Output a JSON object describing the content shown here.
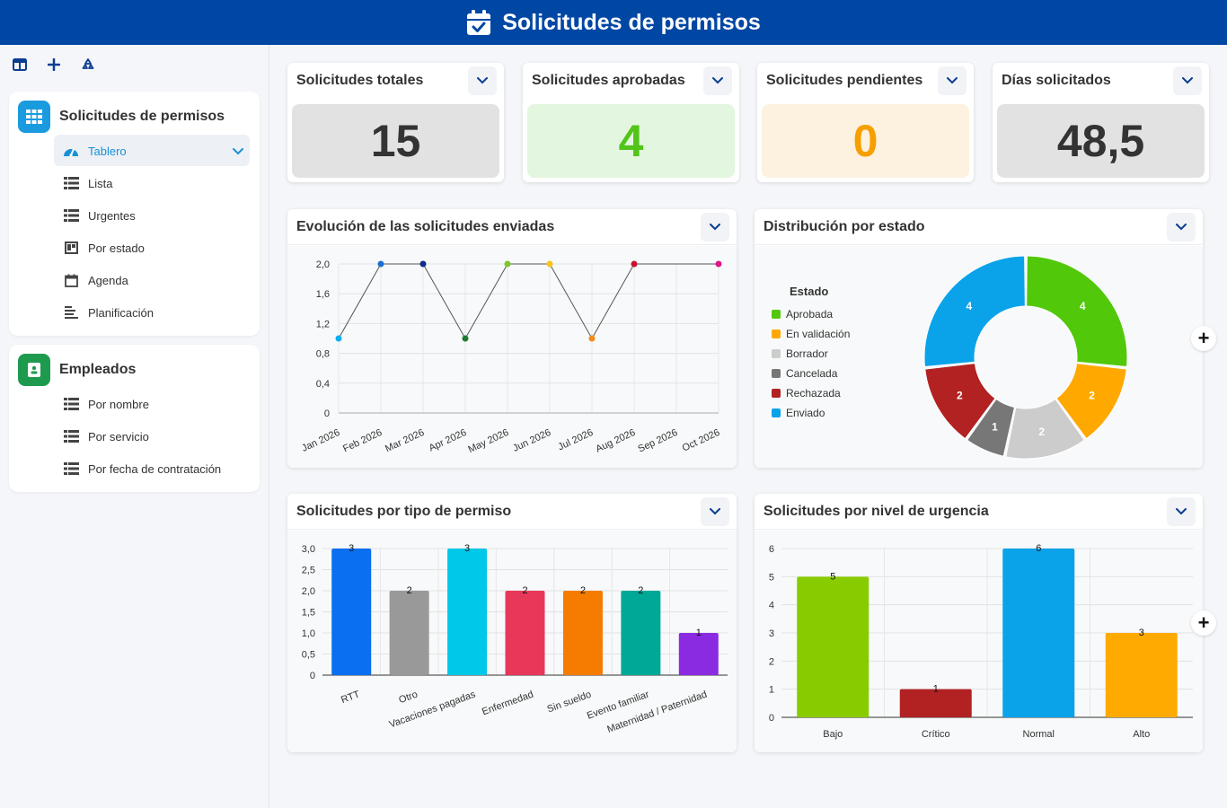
{
  "header": {
    "title": "Solicitudes de permisos"
  },
  "sidebar": {
    "groups": [
      {
        "title": "Solicitudes de permisos",
        "color": "#1a9be0",
        "items": [
          {
            "label": "Tablero",
            "icon": "dashboard-icon",
            "active": true
          },
          {
            "label": "Lista",
            "icon": "table-icon"
          },
          {
            "label": "Urgentes",
            "icon": "table-icon"
          },
          {
            "label": "Por estado",
            "icon": "kanban-icon"
          },
          {
            "label": "Agenda",
            "icon": "calendar-icon"
          },
          {
            "label": "Planificación",
            "icon": "gantt-icon"
          }
        ]
      },
      {
        "title": "Empleados",
        "color": "#1e9a4f",
        "items": [
          {
            "label": "Por nombre",
            "icon": "table-icon"
          },
          {
            "label": "Por servicio",
            "icon": "table-icon"
          },
          {
            "label": "Por fecha de contratación",
            "icon": "table-icon"
          }
        ]
      }
    ]
  },
  "kpis": [
    {
      "title": "Solicitudes totales",
      "value": "15",
      "bg": "#e2e2e2",
      "color": "#333333"
    },
    {
      "title": "Solicitudes aprobadas",
      "value": "4",
      "bg": "#e3f6df",
      "color": "#52c41a"
    },
    {
      "title": "Solicitudes pendientes",
      "value": "0",
      "bg": "#fdf1df",
      "color": "#f5a000"
    },
    {
      "title": "Días solicitados",
      "value": "48,5",
      "bg": "#e2e2e2",
      "color": "#333333"
    }
  ],
  "charts": {
    "line": {
      "title": "Evolución de las solicitudes enviadas"
    },
    "donut": {
      "title": "Distribución por estado"
    },
    "bar_type": {
      "title": "Solicitudes por tipo de permiso"
    },
    "bar_urgency": {
      "title": "Solicitudes por nivel de urgencia"
    }
  },
  "chart_data": [
    {
      "type": "line",
      "title": "Evolución de las solicitudes enviadas",
      "categories": [
        "Jan 2026",
        "Feb 2026",
        "Mar 2026",
        "Apr 2026",
        "May 2026",
        "Jun 2026",
        "Jul 2026",
        "Aug 2026",
        "Sep 2026",
        "Oct 2026"
      ],
      "values": [
        1,
        2,
        2,
        1,
        2,
        2,
        1,
        2,
        null,
        2
      ],
      "point_colors": [
        "#00b0f0",
        "#1a6fd0",
        "#0b2f8a",
        "#1e7a2e",
        "#7ac82a",
        "#f5c518",
        "#f08c1c",
        "#c8102e",
        null,
        "#e0158a"
      ],
      "yticks": [
        "2,0",
        "1,6",
        "1,2",
        "0,8",
        "0,4",
        "0"
      ],
      "ylim": [
        0,
        2
      ],
      "grid": true
    },
    {
      "type": "pie",
      "title": "Distribución por estado",
      "legend_title": "Estado",
      "legend_position": "left",
      "labels": [
        "Aprobada",
        "En validación",
        "Borrador",
        "Cancelada",
        "Rechazada",
        "Enviado"
      ],
      "values": [
        4,
        2,
        2,
        1,
        2,
        4
      ],
      "colors": [
        "#52c80a",
        "#ffa800",
        "#cccccc",
        "#777777",
        "#b22222",
        "#0aa3ea"
      ]
    },
    {
      "type": "bar",
      "title": "Solicitudes por tipo de permiso",
      "categories": [
        "RTT",
        "Otro",
        "Vacaciones pagadas",
        "Enfermedad",
        "Sin sueldo",
        "Evento familiar",
        "Maternidad / Paternidad"
      ],
      "values": [
        3,
        2,
        3,
        2,
        2,
        2,
        1
      ],
      "colors": [
        "#0a6ff0",
        "#999999",
        "#00c8e8",
        "#e8385a",
        "#f57c00",
        "#00a898",
        "#8a2be2"
      ],
      "yticks": [
        "3,0",
        "2,5",
        "2,0",
        "1,5",
        "1,0",
        "0,5",
        "0"
      ],
      "ylim": [
        0,
        3
      ]
    },
    {
      "type": "bar",
      "title": "Solicitudes por nivel de urgencia",
      "categories": [
        "Bajo",
        "Crítico",
        "Normal",
        "Alto"
      ],
      "values": [
        5,
        1,
        6,
        3
      ],
      "colors": [
        "#88cc00",
        "#b22222",
        "#0aa3ea",
        "#ffaa00"
      ],
      "yticks": [
        "6",
        "5",
        "4",
        "3",
        "2",
        "1",
        "0"
      ],
      "ylim": [
        0,
        6
      ]
    }
  ]
}
